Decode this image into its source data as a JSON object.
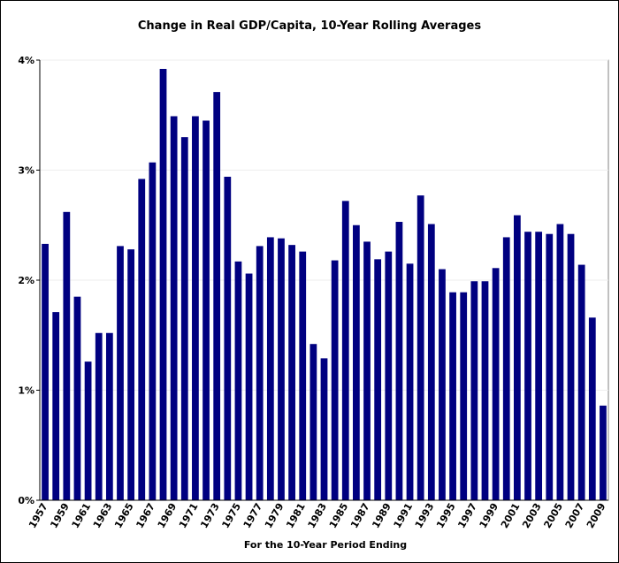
{
  "chart_data": {
    "type": "bar",
    "title": "Change in Real GDP/Capita, 10-Year Rolling Averages",
    "x_label": "For the 10-Year Period Ending",
    "categories": [
      "1957",
      null,
      "1959",
      null,
      "1961",
      null,
      "1963",
      null,
      "1965",
      null,
      "1967",
      null,
      "1969",
      null,
      "1971",
      null,
      "1973",
      null,
      "1975",
      null,
      "1977",
      null,
      "1979",
      null,
      "1981",
      null,
      "1983",
      null,
      "1985",
      null,
      "1987",
      null,
      "1989",
      null,
      "1991",
      null,
      "1993",
      null,
      "1995",
      null,
      "1997",
      null,
      "1999",
      null,
      "2001",
      null,
      "2003",
      null,
      "2005",
      null,
      "2007",
      null,
      "2009"
    ],
    "values": [
      2.33,
      1.71,
      2.62,
      1.85,
      1.26,
      1.52,
      1.52,
      2.31,
      2.28,
      2.92,
      3.07,
      3.92,
      3.49,
      3.3,
      3.49,
      3.45,
      3.71,
      2.94,
      2.17,
      2.06,
      2.31,
      2.39,
      2.38,
      2.32,
      2.26,
      1.42,
      1.29,
      2.18,
      2.72,
      2.5,
      2.35,
      2.19,
      2.26,
      2.53,
      2.15,
      2.77,
      2.51,
      2.1,
      1.89,
      1.89,
      1.99,
      1.99,
      2.11,
      2.39,
      2.59,
      2.44,
      2.44,
      2.42,
      2.51,
      2.42,
      2.14,
      1.66,
      0.86
    ],
    "color": "#000080",
    "ylim": [
      0,
      4
    ],
    "yticks": [
      {
        "value": 0,
        "label": "0%"
      },
      {
        "value": 1,
        "label": "1%"
      },
      {
        "value": 2,
        "label": "2%"
      },
      {
        "value": 3,
        "label": "3%"
      },
      {
        "value": 4,
        "label": "4%"
      }
    ],
    "grid": true
  }
}
